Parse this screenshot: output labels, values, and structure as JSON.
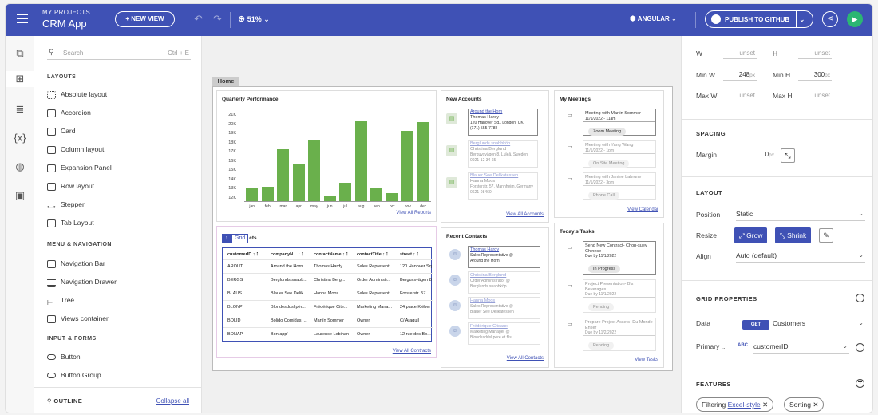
{
  "header": {
    "project_label": "MY PROJECTS",
    "app_name": "CRM App",
    "new_view": "+ NEW VIEW",
    "zoom": "51%",
    "framework": "ANGULAR",
    "publish": "PUBLISH TO GITHUB"
  },
  "sidebar": {
    "search_placeholder": "Search",
    "search_shortcut": "Ctrl + E",
    "layouts_title": "LAYOUTS",
    "layouts": [
      "Absolute layout",
      "Accordion",
      "Card",
      "Column layout",
      "Expansion Panel",
      "Row layout",
      "Stepper",
      "Tab Layout"
    ],
    "menu_title": "MENU & NAVIGATION",
    "menu": [
      "Navigation Bar",
      "Navigation Drawer",
      "Tree",
      "Views container"
    ],
    "input_title": "INPUT & FORMS",
    "inputs": [
      "Button",
      "Button Group"
    ],
    "outline": "OUTLINE",
    "collapse_all": "Collapse all"
  },
  "canvas": {
    "tab": "Home",
    "perf_title": "Quarterly Performance",
    "view_reports": "View All Reports",
    "grid_label": "Grid",
    "grid_title_rest": "cts",
    "view_contracts": "View All Contracts",
    "accounts_title": "New Accounts",
    "view_accounts": "View All Accounts",
    "meetings_title": "My Meetings",
    "view_calendar": "View Calendar",
    "contacts_title": "Recent Contacts",
    "view_contacts": "View All Contacts",
    "tasks_title": "Today's Tasks",
    "view_tasks": "View Tasks"
  },
  "chart_data": {
    "type": "bar",
    "categories": [
      "jan",
      "feb",
      "mar",
      "apr",
      "may",
      "jun",
      "jul",
      "aug",
      "sep",
      "oct",
      "nov",
      "dec"
    ],
    "values": [
      13100,
      13300,
      17400,
      15800,
      18300,
      12300,
      13700,
      20400,
      13100,
      12600,
      19400,
      20300
    ],
    "yticks": [
      "12K",
      "13K",
      "14K",
      "15K",
      "16K",
      "17K",
      "18K",
      "19K",
      "20K",
      "21K"
    ],
    "ylim": [
      11700,
      21300
    ],
    "grid": false,
    "title": "Quarterly Performance"
  },
  "grid": {
    "columns": [
      "customerID",
      "companyN...",
      "contactName",
      "contactTitle",
      "street"
    ],
    "rows": [
      [
        "AROUT",
        "Around the Horn",
        "Thomas Hardy",
        "Sales Represent...",
        "120 Hanover Sq."
      ],
      [
        "BERGS",
        "Berglunds snabb...",
        "Christina Berg...",
        "Order Administr...",
        "Berguvsvägen 8"
      ],
      [
        "BLAUS",
        "Blauer See Delik...",
        "Hanna Moos",
        "Sales Represent...",
        "Forsterstr. 57"
      ],
      [
        "BLONP",
        "Blondesddsl pèr...",
        "Frédérique Cite...",
        "Marketing Mana...",
        "24 place Kléber"
      ],
      [
        "BOLID",
        "Bólido Comidas ...",
        "Martín Sommer",
        "Owner",
        "C/ Araquil"
      ],
      [
        "BONAP",
        "Bon app'",
        "Laurence Lebihan",
        "Owner",
        "12 rue des Bo..."
      ]
    ]
  },
  "accounts": [
    {
      "name": "Around the Horn",
      "contact": "Thomas Hardy",
      "addr": "120 Hanover Sq., London, UK",
      "phone": "(171) 555-7788"
    },
    {
      "name": "Berglunds snabbköp",
      "contact": "Christina Berglund",
      "addr": "Berguvsvägen 8, Luleå, Sweden",
      "phone": "0921-12 34 65"
    },
    {
      "name": "Blauer See Delikatessen",
      "contact": "Hanna Moos",
      "addr": "Forsterstr. 57, Mannheim, Germany",
      "phone": "0621-08460"
    }
  ],
  "meetings": [
    {
      "title": "Meeting with Martin Sommer",
      "time": "11/1/2022 - 11am",
      "chip": "Zoom Meeting"
    },
    {
      "title": "Meeting with Yang Wang",
      "time": "11/1/2022 - 1pm",
      "chip": "On Site Meeting"
    },
    {
      "title": "Meeting with Janine Labrune",
      "time": "11/1/2022 - 3pm",
      "chip": "Phone Call"
    }
  ],
  "contacts": [
    {
      "name": "Thomas Hardy",
      "title": "Sales Representative @",
      "company": "Around the Horn"
    },
    {
      "name": "Christina Berglund",
      "title": "Order Administrator @",
      "company": "Berglunds snabbköp"
    },
    {
      "name": "Hanna Moos",
      "title": "Sales Representative @",
      "company": "Blauer See Delikatessen"
    },
    {
      "name": "Frédérique Citeaux",
      "title": "Marketing Manager @",
      "company": "Blondesddsl père et fils"
    }
  ],
  "tasks": [
    {
      "title": "Send New Contract- Chop-suey Chinese",
      "due": "Due by 11/1/2022",
      "chip": "In Progress"
    },
    {
      "title": "Project Presentation- B's Beverages",
      "due": "Due by 11/1/2022",
      "chip": "Pending"
    },
    {
      "title": "Prepare Project Assets- Du Monde Entier",
      "due": "Due by 11/2/2022",
      "chip": "Pending"
    }
  ],
  "props": {
    "w_label": "W",
    "w_val": "unset",
    "h_label": "H",
    "h_val": "unset",
    "minw_label": "Min W",
    "minw_val": "248",
    "minw_unit": "px",
    "minh_label": "Min H",
    "minh_val": "300",
    "minh_unit": "px",
    "maxw_label": "Max W",
    "maxw_val": "unset",
    "maxh_label": "Max H",
    "maxh_val": "unset",
    "spacing_title": "SPACING",
    "margin_label": "Margin",
    "margin_val": "0",
    "margin_unit": "px",
    "layout_title": "LAYOUT",
    "position_label": "Position",
    "position_val": "Static",
    "resize_label": "Resize",
    "grow": "Grow",
    "shrink": "Shrink",
    "align_label": "Align",
    "align_val": "Auto (default)",
    "grid_title": "GRID PROPERTIES",
    "data_label": "Data",
    "data_method": "GET",
    "data_val": "Customers",
    "primary_label": "Primary ...",
    "primary_type": "ABC",
    "primary_val": "customerID",
    "features_title": "FEATURES",
    "filtering": "Filtering",
    "excel_style": "Excel-style",
    "sorting": "Sorting"
  }
}
